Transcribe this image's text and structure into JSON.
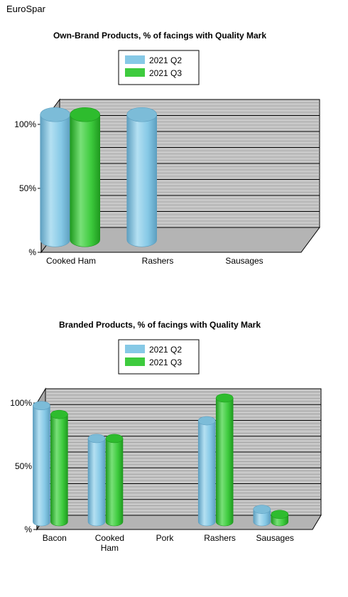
{
  "page": {
    "title": "EuroSpar"
  },
  "colors": {
    "q2_light": "#b4e0f2",
    "q2_mid": "#86c9e6",
    "q2_dark": "#5d9fc0",
    "q2_top": "#7cbcd8",
    "q3_light": "#78e078",
    "q3_mid": "#3ecb3e",
    "q3_dark": "#1f9a1f",
    "q3_top": "#2ebc2e",
    "wall": "#c8c8c8",
    "floor": "#b4b4b4",
    "side": "#a8a8a8"
  },
  "chart_data": [
    {
      "type": "bar",
      "title": "Own-Brand Products, % of facings with Quality Mark",
      "categories": [
        "Cooked Ham",
        "Rashers",
        "Sausages"
      ],
      "series": [
        {
          "name": "2021 Q2",
          "values": [
            100,
            100,
            null
          ]
        },
        {
          "name": "2021 Q3",
          "values": [
            100,
            null,
            null
          ]
        }
      ],
      "ylim": [
        0,
        100
      ],
      "yticks": [
        {
          "value": 0,
          "label": "%"
        },
        {
          "value": 50,
          "label": "50%"
        },
        {
          "value": 100,
          "label": "100%"
        }
      ],
      "grid": true,
      "legend": "top-center"
    },
    {
      "type": "bar",
      "title": "Branded Products, % of facings with Quality Mark",
      "categories": [
        "Bacon",
        "Cooked Ham",
        "Pork",
        "Rashers",
        "Sausages"
      ],
      "category_lines": [
        [
          "Bacon"
        ],
        [
          "Cooked",
          "Ham"
        ],
        [
          "Pork"
        ],
        [
          "Rashers"
        ],
        [
          "Sausages"
        ]
      ],
      "series": [
        {
          "name": "2021 Q2",
          "values": [
            94,
            68,
            null,
            82,
            12
          ]
        },
        {
          "name": "2021 Q3",
          "values": [
            87,
            68,
            null,
            100,
            8
          ]
        }
      ],
      "ylim": [
        0,
        100
      ],
      "yticks": [
        {
          "value": 0,
          "label": "%"
        },
        {
          "value": 50,
          "label": "50%"
        },
        {
          "value": 100,
          "label": "100%"
        }
      ],
      "grid": true,
      "legend": "top-center"
    }
  ]
}
